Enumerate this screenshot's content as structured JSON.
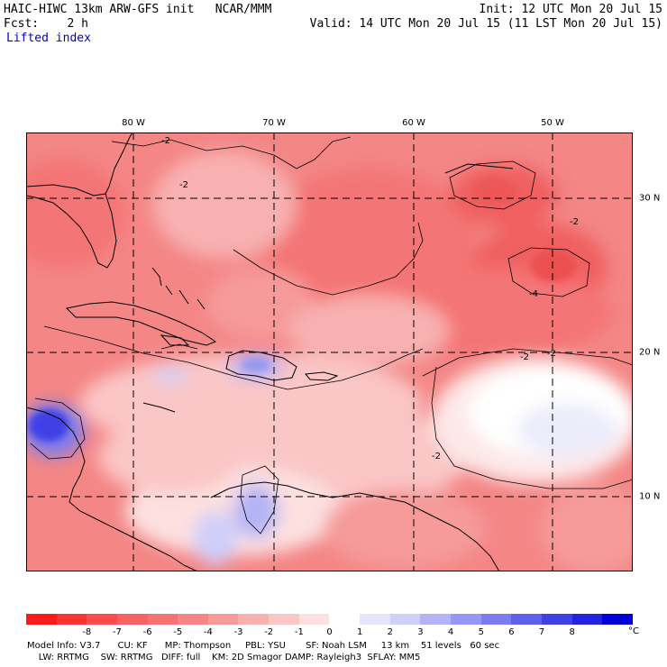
{
  "header": {
    "title": "HAIC-HIWC 13km ARW-GFS init   NCAR/MMM",
    "init": "Init: 12 UTC Mon 20 Jul 15",
    "fcst": "Fcst:    2 h",
    "valid": "Valid: 14 UTC Mon 20 Jul 15 (11 LST Mon 20 Jul 15)",
    "field": "Lifted index"
  },
  "map": {
    "lon_labels": [
      "80 W",
      "70 W",
      "60 W",
      "50 W"
    ],
    "lat_labels": [
      "30 N",
      "20 N",
      "10 N"
    ],
    "contour_labels": [
      "-2",
      "-2",
      "-2",
      "-2",
      "-2",
      "-4",
      "-2"
    ]
  },
  "colorbar": {
    "colors": [
      "#ff1a1a",
      "#ff3232",
      "#ff4b4b",
      "#f86262",
      "#f47474",
      "#f48686",
      "#f69a9a",
      "#f8b0b0",
      "#fbc6c6",
      "#fde0e0",
      "#ffffff",
      "#e6e6fb",
      "#cfcffa",
      "#b3b3f6",
      "#9898f2",
      "#7c7cee",
      "#5f5fea",
      "#3f3fe6",
      "#2222e0",
      "#0000dc"
    ],
    "ticks": [
      "-8",
      "-7",
      "-6",
      "-5",
      "-4",
      "-3",
      "-2",
      "-1",
      "0",
      "1",
      "2",
      "3",
      "4",
      "5",
      "6",
      "7",
      "8"
    ],
    "unit": "°C"
  },
  "footer": {
    "line1": "Model Info: V3.7      CU: KF      MP: Thompson     PBL: YSU       SF: Noah LSM     13 km    51 levels   60 sec",
    "line2": "    LW: RRTMG    SW: RRTMG   DIFF: full    KM: 2D Smagor DAMP: Rayleigh3  SFLAY: MM5"
  }
}
